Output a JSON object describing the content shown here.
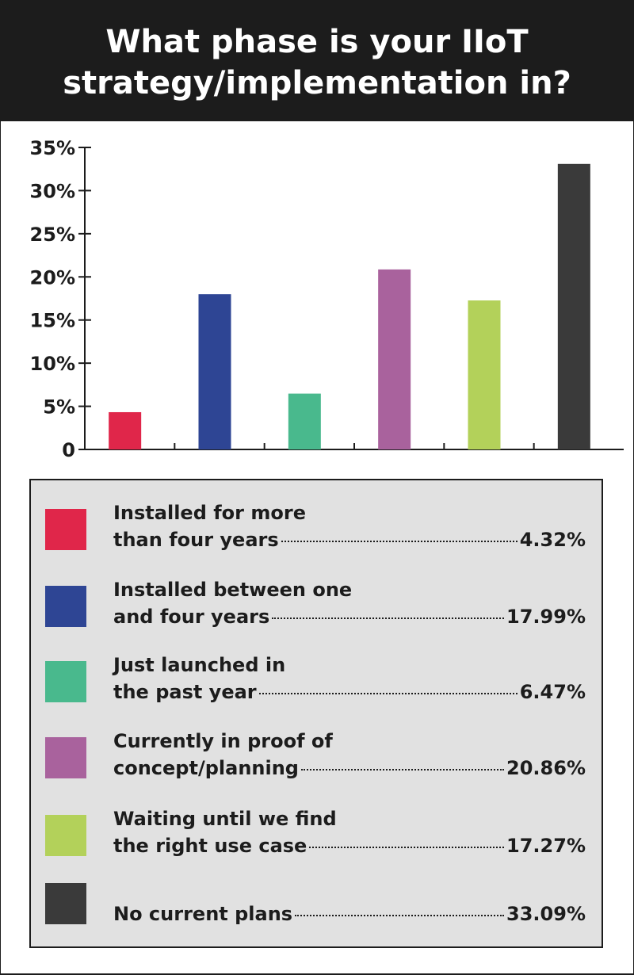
{
  "title_lines": [
    "What phase is your IIoT",
    "strategy/implementation in?"
  ],
  "chart_data": {
    "type": "bar",
    "title": "What phase is your IIoT strategy/implementation in?",
    "categories": [
      "Installed for more than four years",
      "Installed between one and four years",
      "Just launched in the past year",
      "Currently in proof of concept/planning",
      "Waiting until we find the right use case",
      "No current plans"
    ],
    "values": [
      4.32,
      17.99,
      6.47,
      20.86,
      17.27,
      33.09
    ],
    "colors": [
      "#e0264a",
      "#2e4594",
      "#49b98d",
      "#a9629d",
      "#b3d15a",
      "#3a3a3a"
    ],
    "ylim": [
      0,
      35
    ],
    "yticks": [
      0,
      5,
      10,
      15,
      20,
      25,
      30,
      35
    ],
    "ytick_labels": [
      "0",
      "5%",
      "10%",
      "15%",
      "20%",
      "25%",
      "30%",
      "35%"
    ],
    "xlabel": "",
    "ylabel": "",
    "grid": false,
    "legend_placement": "bottom"
  },
  "legend": [
    {
      "line1": "Installed for more",
      "line2": "than four years",
      "value": "4.32%"
    },
    {
      "line1": "Installed between one",
      "line2": "and four years",
      "value": "17.99%"
    },
    {
      "line1": "Just launched in",
      "line2": "the past year",
      "value": "6.47%"
    },
    {
      "line1": "Currently in proof of",
      "line2": "concept/planning",
      "value": "20.86%"
    },
    {
      "line1": "Waiting until we find",
      "line2": "the right use case",
      "value": "17.27%"
    },
    {
      "line1": "",
      "line2": "No current plans",
      "value": "33.09%"
    }
  ]
}
